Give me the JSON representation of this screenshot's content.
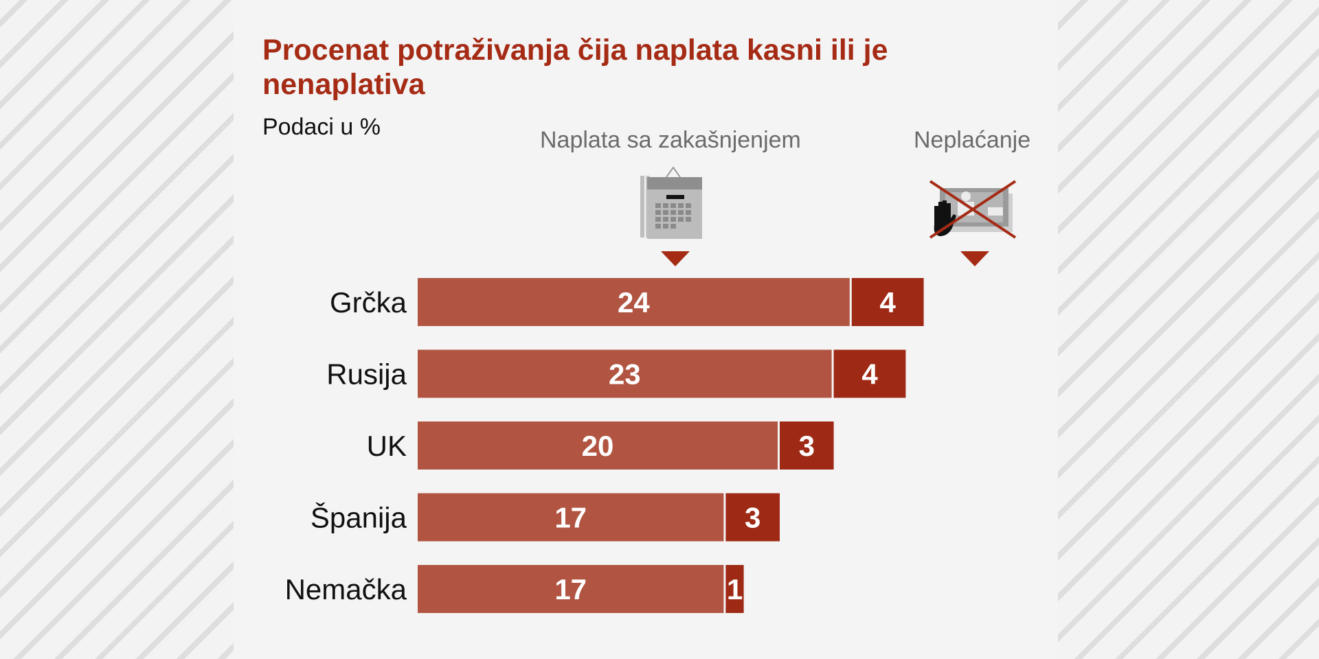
{
  "title": "Procenat potraživanja čija naplata kasni ili je nenaplativa",
  "subtitle": "Podaci u %",
  "colors": {
    "late": "#b15542",
    "unpaid": "#9e2a15",
    "title": "#a52b15"
  },
  "chart_data": {
    "type": "bar",
    "orientation": "horizontal",
    "stacked": true,
    "title": "Procenat potraživanja čija naplata kasni ili je nenaplativa",
    "subtitle": "Podaci u %",
    "categories": [
      "Grčka",
      "Rusija",
      "UK",
      "Španija",
      "Nemačka"
    ],
    "series": [
      {
        "name": "Naplata sa zakašnjenjem",
        "icon": "calendar-icon",
        "values": [
          24,
          23,
          20,
          17,
          17
        ]
      },
      {
        "name": "Neplaćanje",
        "icon": "crossed-out-money-icon",
        "values": [
          4,
          4,
          3,
          3,
          1
        ]
      }
    ],
    "xlim": [
      0,
      28
    ]
  }
}
